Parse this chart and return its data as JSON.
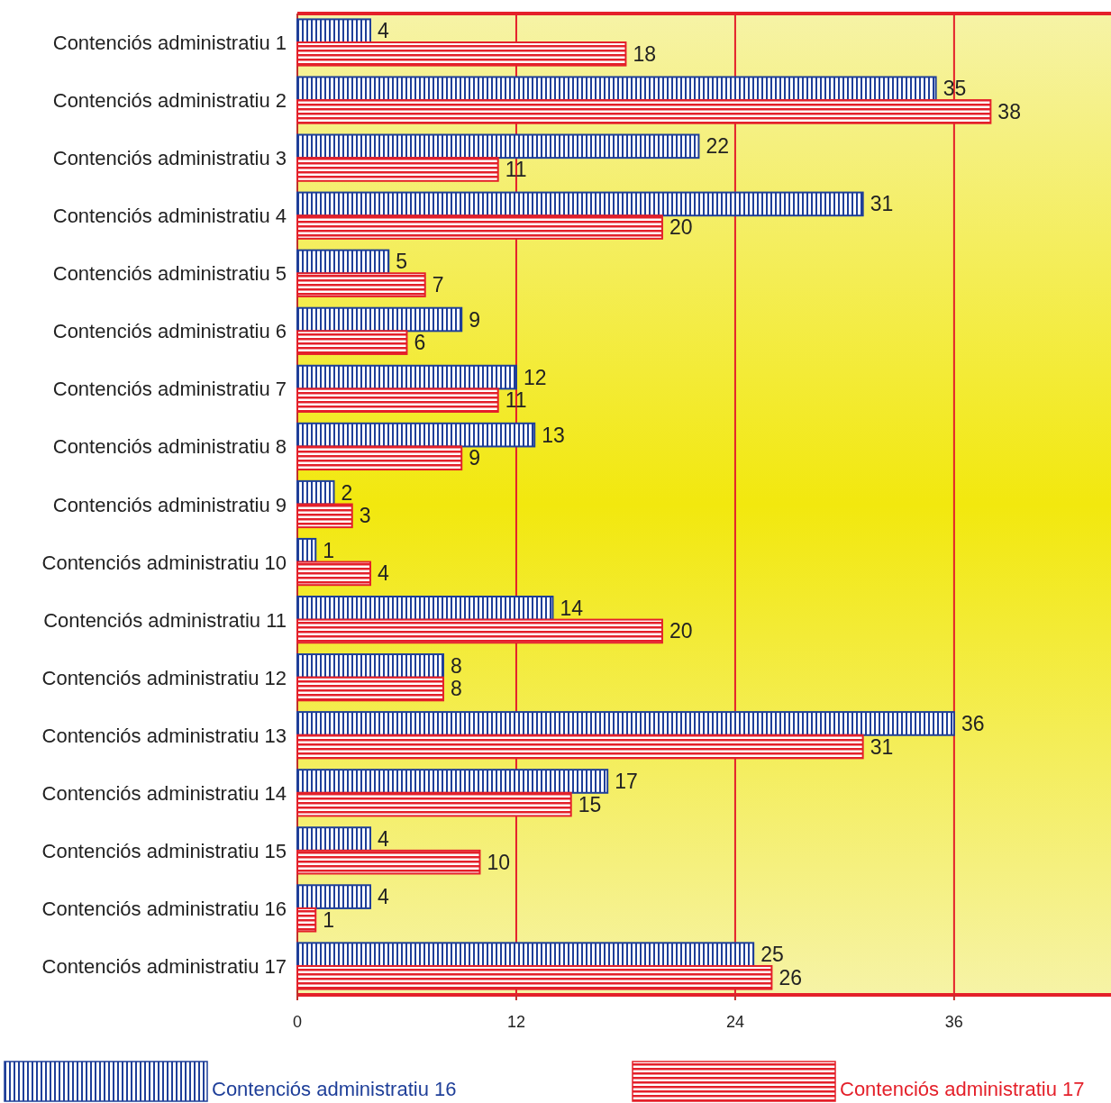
{
  "chart_data": {
    "type": "bar",
    "orientation": "horizontal",
    "categories": [
      "Contenciós administratiu 1",
      "Contenciós administratiu 2",
      "Contenciós administratiu 3",
      "Contenciós administratiu 4",
      "Contenciós administratiu 5",
      "Contenciós administratiu 6",
      "Contenciós administratiu 7",
      "Contenciós administratiu 8",
      "Contenciós administratiu 9",
      "Contenciós administratiu 10",
      "Contenciós administratiu 11",
      "Contenciós administratiu 12",
      "Contenciós administratiu 13",
      "Contenciós administratiu 14",
      "Contenciós administratiu 15",
      "Contenciós administratiu 16",
      "Contenciós administratiu 17"
    ],
    "series": [
      {
        "name": "Contenciós administratiu 16",
        "color": "#1f3f99",
        "values": [
          4,
          35,
          22,
          31,
          5,
          9,
          12,
          13,
          2,
          1,
          14,
          8,
          36,
          17,
          4,
          4,
          25
        ]
      },
      {
        "name": "Contenciós administratiu 17",
        "color": "#e4202a",
        "values": [
          18,
          38,
          11,
          20,
          7,
          6,
          11,
          9,
          3,
          4,
          20,
          8,
          31,
          15,
          10,
          1,
          26
        ]
      }
    ],
    "xlim": [
      0,
      44.6
    ],
    "xticks": [
      0,
      12,
      24,
      36
    ],
    "grid": "x",
    "legend": "bottom",
    "data_labels": true
  }
}
